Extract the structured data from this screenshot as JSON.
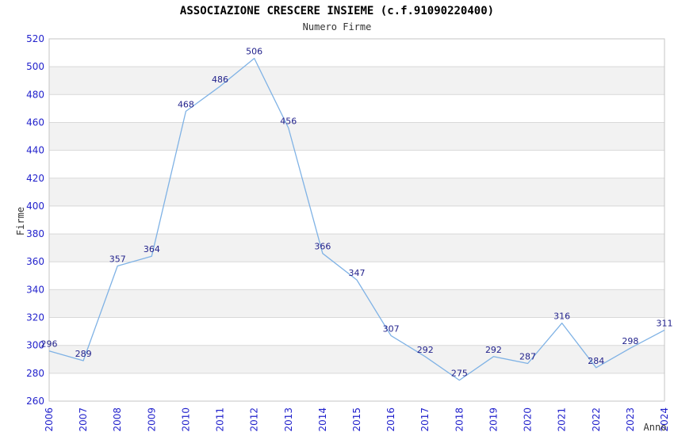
{
  "chart_data": {
    "type": "line",
    "title": "ASSOCIAZIONE CRESCERE INSIEME (c.f.91090220400)",
    "subtitle": "Numero Firme",
    "xlabel": "Anno",
    "ylabel": "Firme",
    "categories": [
      "2006",
      "2007",
      "2008",
      "2009",
      "2010",
      "2011",
      "2012",
      "2013",
      "2014",
      "2015",
      "2016",
      "2017",
      "2018",
      "2019",
      "2020",
      "2021",
      "2022",
      "2023",
      "2024"
    ],
    "values": [
      296,
      289,
      357,
      364,
      468,
      486,
      506,
      456,
      366,
      347,
      307,
      292,
      275,
      292,
      287,
      316,
      284,
      298,
      311
    ],
    "ylim": [
      260,
      520
    ],
    "ytick_step": 20,
    "grid": true,
    "legend": false,
    "band_fill": "alternating horizontal stripes",
    "colors": {
      "line": "#7fb2e5",
      "tick_label": "#2222cc",
      "data_label": "#22228c",
      "band": "#f2f2f2",
      "gridline": "#d9d9d9",
      "border": "#c4c4c4",
      "axis_title": "#333333",
      "title": "#000000"
    }
  }
}
